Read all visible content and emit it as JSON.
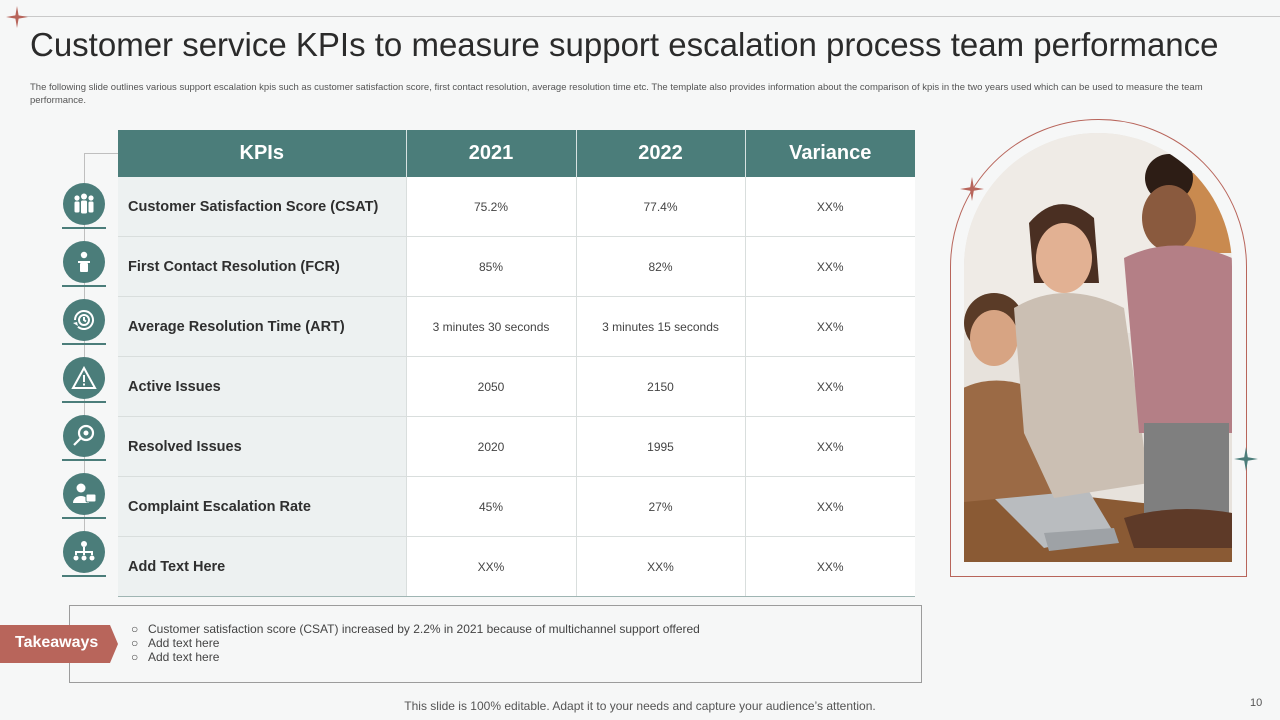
{
  "title": "Customer service KPIs to measure support escalation process team performance",
  "subtitle": "The following slide outlines various support escalation kpis such as customer satisfaction score, first contact resolution, average resolution time etc. The template also provides information about the comparison of kpis in the two years used which can be used to measure the team performance.",
  "table": {
    "headers": [
      "KPIs",
      "2021",
      "2022",
      "Variance"
    ],
    "rows": [
      {
        "kpi": "Customer Satisfaction Score (CSAT)",
        "y2021": "75.2%",
        "y2022": "77.4%",
        "variance": "XX%",
        "icon": "team-icon"
      },
      {
        "kpi": "First Contact Resolution (FCR)",
        "y2021": "85%",
        "y2022": "82%",
        "variance": "XX%",
        "icon": "presenter-icon"
      },
      {
        "kpi": "Average Resolution Time (ART)",
        "y2021": "3 minutes 30 seconds",
        "y2022": "3 minutes 15 seconds",
        "variance": "XX%",
        "icon": "clock-cycle-icon"
      },
      {
        "kpi": "Active Issues",
        "y2021": "2050",
        "y2022": "2150",
        "variance": "XX%",
        "icon": "warning-icon"
      },
      {
        "kpi": "Resolved Issues",
        "y2021": "2020",
        "y2022": "1995",
        "variance": "XX%",
        "icon": "search-gear-icon"
      },
      {
        "kpi": "Complaint Escalation Rate",
        "y2021": "45%",
        "y2022": "27%",
        "variance": "XX%",
        "icon": "user-card-icon"
      },
      {
        "kpi": "Add Text Here",
        "y2021": "XX%",
        "y2022": "XX%",
        "variance": "XX%",
        "icon": "hierarchy-icon"
      }
    ]
  },
  "takeaways": {
    "label": "Takeaways",
    "items": [
      "Customer satisfaction score (CSAT) increased by 2.2% in 2021 because of multichannel support offered",
      "Add text here",
      "Add text here"
    ]
  },
  "footer": "This slide is 100% editable. Adapt it to your needs and capture your audience’s attention.",
  "page_number": "10",
  "colors": {
    "teal": "#4b7d7a",
    "rust": "#b8655b",
    "background": "#f6f7f7"
  }
}
